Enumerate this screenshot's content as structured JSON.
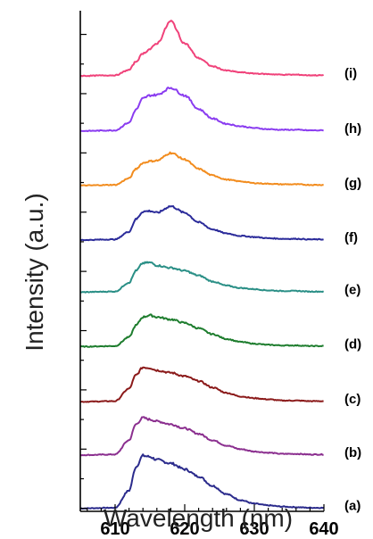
{
  "chart_data": {
    "type": "line",
    "title": "",
    "xlabel": "Wavelength (nm)",
    "ylabel": "Intensity (a.u.)",
    "xlim": [
      605,
      640
    ],
    "xticks": [
      610,
      620,
      630,
      640
    ],
    "x_tick_labels": [
      "610",
      "620",
      "630",
      "640"
    ],
    "y_ticks_labeled": false,
    "grid": false,
    "legend": "none",
    "traces_stacked": true,
    "series": [
      {
        "label": "(a)",
        "color": "#2b2b8c",
        "baseline": 0.0,
        "x": [
          605,
          610,
          612,
          613,
          614,
          615,
          616,
          618,
          620,
          622,
          624,
          626,
          628,
          630,
          632,
          634,
          636,
          638,
          640
        ],
        "y": [
          0.0,
          0.01,
          0.3,
          0.7,
          0.89,
          0.87,
          0.82,
          0.76,
          0.66,
          0.54,
          0.38,
          0.24,
          0.14,
          0.08,
          0.05,
          0.03,
          0.02,
          0.01,
          0.01
        ]
      },
      {
        "label": "(b)",
        "color": "#8b2f8f",
        "baseline": 0.9,
        "x": [
          605,
          610,
          612,
          613,
          614,
          615,
          616,
          618,
          620,
          622,
          624,
          626,
          628,
          630,
          632,
          634,
          636,
          638,
          640
        ],
        "y": [
          0.0,
          0.01,
          0.25,
          0.52,
          0.63,
          0.6,
          0.57,
          0.52,
          0.45,
          0.36,
          0.25,
          0.16,
          0.1,
          0.06,
          0.04,
          0.02,
          0.02,
          0.01,
          0.01
        ]
      },
      {
        "label": "(c)",
        "color": "#8b1a1a",
        "baseline": 1.8,
        "x": [
          605,
          610,
          612,
          613,
          614,
          615,
          616,
          618,
          620,
          622,
          624,
          626,
          628,
          630,
          632,
          634,
          636,
          638,
          640
        ],
        "y": [
          0.0,
          0.01,
          0.22,
          0.45,
          0.58,
          0.57,
          0.53,
          0.49,
          0.43,
          0.35,
          0.24,
          0.15,
          0.09,
          0.06,
          0.04,
          0.02,
          0.02,
          0.01,
          0.01
        ]
      },
      {
        "label": "(d)",
        "color": "#1e7d2e",
        "baseline": 2.73,
        "x": [
          605,
          610,
          612,
          613,
          614,
          615,
          616,
          618,
          620,
          622,
          624,
          626,
          628,
          630,
          632,
          634,
          636,
          638,
          640
        ],
        "y": [
          0.0,
          0.01,
          0.16,
          0.36,
          0.5,
          0.53,
          0.5,
          0.46,
          0.4,
          0.31,
          0.21,
          0.13,
          0.08,
          0.05,
          0.03,
          0.02,
          0.02,
          0.01,
          0.01
        ]
      },
      {
        "label": "(e)",
        "color": "#2a8f86",
        "baseline": 3.65,
        "x": [
          605,
          610,
          612,
          613,
          614,
          615,
          616,
          618,
          620,
          622,
          624,
          626,
          628,
          630,
          632,
          634,
          636,
          638,
          640
        ],
        "y": [
          0.0,
          0.01,
          0.16,
          0.36,
          0.49,
          0.5,
          0.45,
          0.41,
          0.36,
          0.28,
          0.18,
          0.11,
          0.07,
          0.05,
          0.03,
          0.02,
          0.02,
          0.01,
          0.01
        ]
      },
      {
        "label": "(f)",
        "color": "#2b2b9a",
        "baseline": 4.53,
        "x": [
          605,
          610,
          612,
          613,
          614,
          615,
          616,
          618,
          620,
          622,
          624,
          626,
          628,
          630,
          632,
          634,
          636,
          638,
          640
        ],
        "y": [
          0.0,
          0.01,
          0.14,
          0.35,
          0.48,
          0.49,
          0.46,
          0.57,
          0.46,
          0.3,
          0.18,
          0.11,
          0.07,
          0.05,
          0.03,
          0.02,
          0.02,
          0.01,
          0.01
        ]
      },
      {
        "label": "(g)",
        "color": "#f28c1e",
        "baseline": 5.45,
        "x": [
          605,
          610,
          612,
          613,
          614,
          615,
          616,
          618,
          620,
          622,
          624,
          626,
          628,
          630,
          632,
          634,
          636,
          638,
          640
        ],
        "y": [
          0.0,
          0.01,
          0.12,
          0.28,
          0.38,
          0.41,
          0.42,
          0.55,
          0.44,
          0.28,
          0.17,
          0.1,
          0.07,
          0.04,
          0.03,
          0.02,
          0.02,
          0.01,
          0.01
        ]
      },
      {
        "label": "(h)",
        "color": "#8a3cf0",
        "baseline": 6.37,
        "x": [
          605,
          610,
          612,
          613,
          614,
          615,
          616,
          618,
          620,
          622,
          624,
          626,
          628,
          630,
          632,
          634,
          636,
          638,
          640
        ],
        "y": [
          0.0,
          0.01,
          0.14,
          0.36,
          0.55,
          0.6,
          0.61,
          0.73,
          0.6,
          0.37,
          0.21,
          0.12,
          0.08,
          0.05,
          0.03,
          0.02,
          0.02,
          0.01,
          0.01
        ]
      },
      {
        "label": "(i)",
        "color": "#f0427a",
        "baseline": 7.3,
        "x": [
          605,
          610,
          612,
          613,
          614,
          615,
          616,
          618,
          620,
          622,
          624,
          626,
          628,
          630,
          632,
          634,
          636,
          638,
          640
        ],
        "y": [
          0.0,
          0.01,
          0.1,
          0.24,
          0.38,
          0.45,
          0.55,
          0.92,
          0.55,
          0.3,
          0.16,
          0.09,
          0.06,
          0.04,
          0.03,
          0.02,
          0.02,
          0.01,
          0.01
        ]
      }
    ]
  }
}
